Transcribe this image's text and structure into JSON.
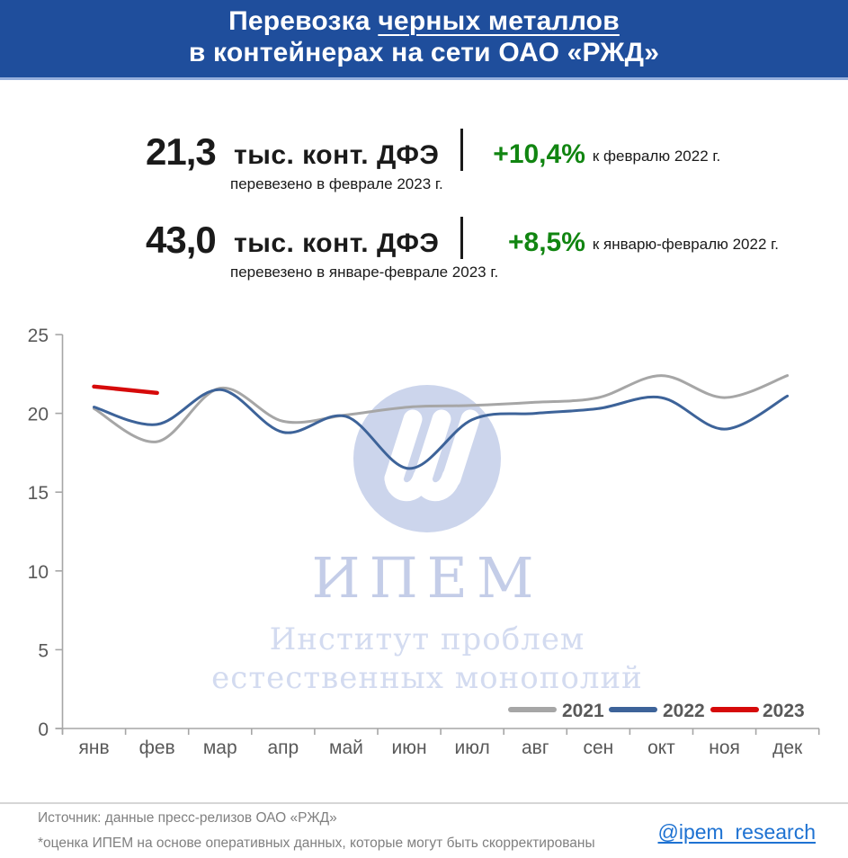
{
  "header": {
    "title_prefix": "Перевозка ",
    "title_underlined": "черных металлов",
    "title_line2": "в контейнерах на сети ОАО «РЖД»"
  },
  "stats": [
    {
      "value": "21,3",
      "unit": "тыс. конт. ДФЭ",
      "caption": "перевезено в феврале 2023 г.",
      "delta": "+10,4%",
      "vs": "к февралю 2022 г."
    },
    {
      "value": "43,0",
      "unit": "тыс. конт. ДФЭ",
      "caption": "перевезено в январе-феврале 2023 г.",
      "delta": "+8,5%",
      "vs": "к январю-февралю 2022 г."
    }
  ],
  "watermark": {
    "acronym": "ИПЕМ",
    "line1": "Институт проблем",
    "line2": "естественных монополий"
  },
  "chart_data": {
    "type": "line",
    "title": "",
    "xlabel": "",
    "ylabel": "",
    "categories": [
      "янв",
      "фев",
      "мар",
      "апр",
      "май",
      "июн",
      "июл",
      "авг",
      "сен",
      "окт",
      "ноя",
      "дек"
    ],
    "series": [
      {
        "name": "2021",
        "color": "#A6A6A6",
        "width": 3,
        "values": [
          20.3,
          18.2,
          21.6,
          19.5,
          19.9,
          20.4,
          20.5,
          20.7,
          21.0,
          22.4,
          21.0,
          22.4
        ]
      },
      {
        "name": "2022",
        "color": "#3D6399",
        "width": 3,
        "values": [
          20.4,
          19.3,
          21.5,
          18.8,
          19.8,
          16.5,
          19.6,
          20.0,
          20.3,
          21.0,
          19.0,
          21.1
        ]
      },
      {
        "name": "2023",
        "color": "#D60A0A",
        "width": 4.5,
        "values": [
          21.7,
          21.3
        ]
      }
    ],
    "ylim": [
      0,
      25
    ],
    "ytick_step": 5,
    "grid": false,
    "legend_position": "bottom-right",
    "axis_color": "#A6A6A6",
    "label_color": "#595959"
  },
  "colors": {
    "header_bg": "#1F4E9C",
    "header_border": "#96AFDC",
    "positive_green": "#118511",
    "link_blue": "#1E72D2",
    "watermark_fill": "#CCD5EC"
  },
  "footer": {
    "source_line1": "Источник: данные пресс-релизов ОАО «РЖД»",
    "source_line2": "*оценка ИПЕМ на основе оперативных данных, которые могут быть скорректированы",
    "link": "@ipem_research"
  }
}
